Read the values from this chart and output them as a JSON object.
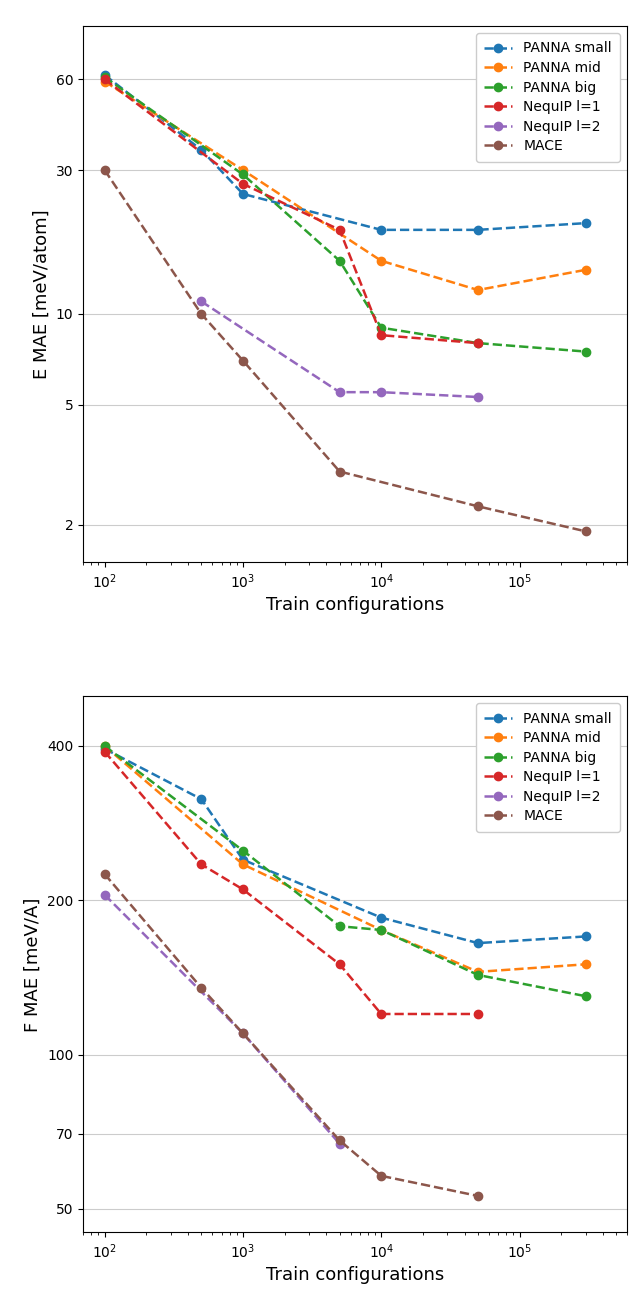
{
  "colors": {
    "PANNA small": "#1f77b4",
    "PANNA mid": "#ff7f0e",
    "PANNA big": "#2ca02c",
    "NequIP l=1": "#d62728",
    "NequIP l=2": "#9467bd",
    "MACE": "#8c564b"
  },
  "labels": [
    "PANNA small",
    "PANNA mid",
    "PANNA big",
    "NequIP l=1",
    "NequIP l=2",
    "MACE"
  ],
  "x_energy": {
    "PANNA small": [
      100,
      500,
      1000,
      10000,
      50000,
      300000
    ],
    "PANNA mid": [
      100,
      1000,
      10000,
      50000,
      300000
    ],
    "PANNA big": [
      100,
      1000,
      5000,
      10000,
      50000,
      300000
    ],
    "NequIP l=1": [
      100,
      1000,
      5000,
      10000,
      50000
    ],
    "NequIP l=2": [
      500,
      5000,
      10000,
      50000
    ],
    "MACE": [
      100,
      500,
      1000,
      5000,
      50000,
      300000
    ]
  },
  "y_energy": {
    "PANNA small": [
      62,
      35,
      25,
      19,
      19,
      20
    ],
    "PANNA mid": [
      59,
      30,
      15,
      12,
      14
    ],
    "PANNA big": [
      61,
      29,
      15,
      9,
      8,
      7.5
    ],
    "NequIP l=1": [
      60,
      27,
      19,
      8.5,
      8
    ],
    "NequIP l=2": [
      11,
      5.5,
      5.5,
      5.3
    ],
    "MACE": [
      30,
      10,
      7,
      3.0,
      2.3,
      1.9
    ]
  },
  "x_forces": {
    "PANNA small": [
      100,
      500,
      1000,
      10000,
      50000,
      300000
    ],
    "PANNA mid": [
      100,
      1000,
      10000,
      50000,
      300000
    ],
    "PANNA big": [
      100,
      1000,
      5000,
      10000,
      50000,
      300000
    ],
    "NequIP l=1": [
      100,
      500,
      1000,
      5000,
      10000,
      50000
    ],
    "NequIP l=2": [
      100,
      1000,
      5000
    ],
    "MACE": [
      100,
      500,
      1000,
      5000,
      10000,
      50000
    ]
  },
  "y_forces": {
    "PANNA small": [
      395,
      315,
      240,
      185,
      165,
      170
    ],
    "PANNA mid": [
      400,
      235,
      175,
      145,
      150
    ],
    "PANNA big": [
      400,
      250,
      178,
      175,
      143,
      130
    ],
    "NequIP l=1": [
      390,
      235,
      210,
      150,
      120,
      120
    ],
    "NequIP l=2": [
      205,
      110,
      67
    ],
    "MACE": [
      225,
      135,
      110,
      68,
      58,
      53
    ]
  },
  "energy_yticks": [
    2,
    5,
    10,
    30,
    60
  ],
  "forces_yticks": [
    50,
    70,
    100,
    200,
    400
  ],
  "energy_ylim": [
    1.5,
    90
  ],
  "forces_ylim": [
    45,
    500
  ],
  "xlim": [
    70,
    600000
  ],
  "xlabel": "Train configurations",
  "ylabel_energy": "E MAE [meV/atom]",
  "ylabel_forces": "F MAE [meV/A]",
  "fontsize_label": 13,
  "fontsize_legend": 10,
  "markersize": 6,
  "linewidth": 1.8
}
